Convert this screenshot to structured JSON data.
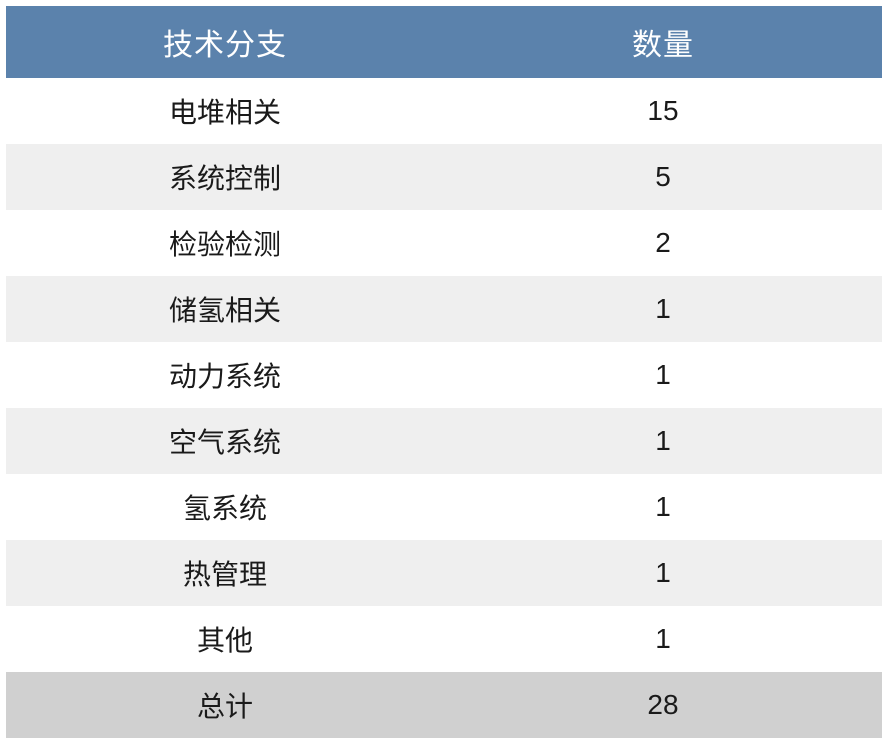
{
  "table": {
    "type": "table",
    "columns": [
      "技术分支",
      "数量"
    ],
    "rows": [
      {
        "label": "电堆相关",
        "value": "15"
      },
      {
        "label": "系统控制",
        "value": "5"
      },
      {
        "label": "检验检测",
        "value": "2"
      },
      {
        "label": "储氢相关",
        "value": "1"
      },
      {
        "label": "动力系统",
        "value": "1"
      },
      {
        "label": "空气系统",
        "value": "1"
      },
      {
        "label": "氢系统",
        "value": "1"
      },
      {
        "label": "热管理",
        "value": "1"
      },
      {
        "label": "其他",
        "value": "1"
      }
    ],
    "total": {
      "label": "总计",
      "value": "28"
    },
    "styling": {
      "header_bg": "#5b82ac",
      "header_text_color": "#ffffff",
      "header_fontsize": 30,
      "body_fontsize": 28,
      "body_text_color": "#1a1a1a",
      "row_odd_bg": "#ffffff",
      "row_even_bg": "#efefef",
      "total_bg": "#d0d0d0",
      "column_widths": [
        "50%",
        "50%"
      ],
      "text_align": "center",
      "cell_padding_v": 13,
      "cell_padding_h": 8
    }
  }
}
